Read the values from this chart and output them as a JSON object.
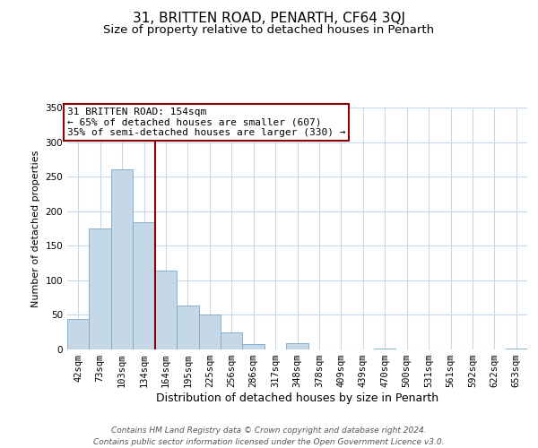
{
  "title": "31, BRITTEN ROAD, PENARTH, CF64 3QJ",
  "subtitle": "Size of property relative to detached houses in Penarth",
  "xlabel": "Distribution of detached houses by size in Penarth",
  "ylabel": "Number of detached properties",
  "footer_line1": "Contains HM Land Registry data © Crown copyright and database right 2024.",
  "footer_line2": "Contains public sector information licensed under the Open Government Licence v3.0.",
  "bar_labels": [
    "42sqm",
    "73sqm",
    "103sqm",
    "134sqm",
    "164sqm",
    "195sqm",
    "225sqm",
    "256sqm",
    "286sqm",
    "317sqm",
    "348sqm",
    "378sqm",
    "409sqm",
    "439sqm",
    "470sqm",
    "500sqm",
    "531sqm",
    "561sqm",
    "592sqm",
    "622sqm",
    "653sqm"
  ],
  "bar_values": [
    44,
    175,
    260,
    184,
    114,
    64,
    50,
    25,
    8,
    0,
    9,
    0,
    0,
    0,
    1,
    0,
    0,
    0,
    0,
    0,
    1
  ],
  "bar_color": "#c5d8e8",
  "bar_edge_color": "#7aa8c8",
  "vline_color": "#8b0000",
  "vline_x_index": 3.5,
  "annotation_text": "31 BRITTEN ROAD: 154sqm\n← 65% of detached houses are smaller (607)\n35% of semi-detached houses are larger (330) →",
  "annotation_box_color": "#ffffff",
  "annotation_box_edge": "#8b0000",
  "ylim": [
    0,
    350
  ],
  "yticks": [
    0,
    50,
    100,
    150,
    200,
    250,
    300,
    350
  ],
  "background_color": "#ffffff",
  "grid_color": "#c8d8e8",
  "title_fontsize": 11,
  "subtitle_fontsize": 9.5,
  "xlabel_fontsize": 9,
  "ylabel_fontsize": 8,
  "tick_fontsize": 7.5,
  "annotation_fontsize": 8,
  "footer_fontsize": 6.5
}
